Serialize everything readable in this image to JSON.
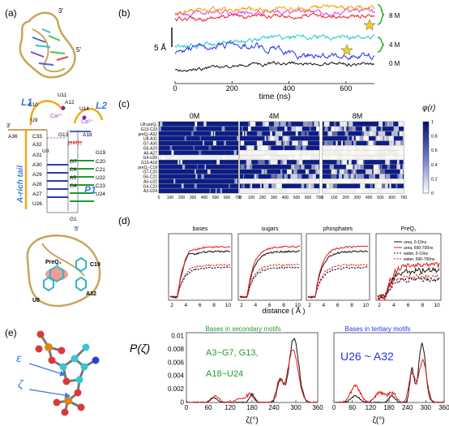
{
  "panels": {
    "a": {
      "label": "(a)",
      "strand_3prime": "3'",
      "strand_5prime": "5'",
      "loop_L1": "L1",
      "loop_L2": "L2",
      "pseudoknot_P1": "P1",
      "a_rich_tail": "A-rich tail",
      "ion_label": "Ca²⁺",
      "ligand_label": "PreQ₁",
      "nucleotides": [
        "U11",
        "C10",
        "A12",
        "U14",
        "U9",
        "G13",
        "A18",
        "A36",
        "C33",
        "A32",
        "preQ₁",
        "U8",
        "A31",
        "G7",
        "C20",
        "A30",
        "C6",
        "G19",
        "A29",
        "A5",
        "U22",
        "A28",
        "G4",
        "C21",
        "A27",
        "U26",
        "C23",
        "U24",
        "G1"
      ],
      "pocket_labels": [
        "PreQ₁",
        "C19",
        "U8",
        "A32"
      ]
    },
    "b": {
      "label": "(b)",
      "scale_label": "5 Å",
      "x_label": "time (ns)",
      "x_ticks": [
        "0",
        "200",
        "400",
        "600"
      ],
      "conditions": [
        "8 M",
        "4 M",
        "0 M"
      ],
      "colors": {
        "orange": "#f5a000",
        "magenta": "#e640e6",
        "red": "#ee2222",
        "blue": "#2233ee",
        "cyan": "#22cccc",
        "black": "#111111",
        "green": "#22aa22",
        "star": "#f2d21a"
      }
    },
    "c": {
      "label": "(c)",
      "headers": [
        "0M",
        "4M",
        "8M"
      ],
      "rows": [
        "U8-preQ₁",
        "G13-C33",
        "preQ₁-A32",
        "U8-A31",
        "G7-A30",
        "G6-A29",
        "A5-A27",
        "G4-U26",
        "G13-A18",
        "preQ₁-C19",
        "G7-C20",
        "G6-C21",
        "A5-U22",
        "G4-C23",
        "A3-U24"
      ],
      "x_ticks": [
        "0",
        "100",
        "200",
        "300",
        "400",
        "500",
        "600",
        "700"
      ],
      "cbar_title": "φ(r)",
      "cbar_ticks": [
        "1",
        "0.8",
        "0.6",
        "0.4",
        "0.2",
        "0"
      ]
    },
    "d": {
      "label": "(d)",
      "subplots": [
        "bases",
        "sugars",
        "phosphates",
        "PreQ₁"
      ],
      "x_ticks": [
        "2",
        "4",
        "6",
        "8",
        "10"
      ],
      "x_label": "distance ( Å )",
      "legend": [
        "urea, 0-10ns",
        "urea, 690-700ns",
        "water, 0-10ns",
        "water, 690-700ns"
      ]
    },
    "e": {
      "label": "(e)",
      "epsilon": "ε",
      "zeta": "ζ",
      "y_label": "P(ζ)",
      "x_label": "ζ(°)",
      "x_ticks": [
        "0",
        "60",
        "120",
        "180",
        "240",
        "300",
        "360"
      ],
      "y_ticks": [
        "0.01",
        "0.008",
        "0.006",
        "0.004",
        "0.002",
        "0"
      ],
      "left_title": "Bases in secondary motifs",
      "left_annotation": [
        "A3~G7, G13,",
        "A18~U24"
      ],
      "right_title": "Bases in tertiary motifs",
      "right_annotation": "U26 ~ A32"
    }
  }
}
